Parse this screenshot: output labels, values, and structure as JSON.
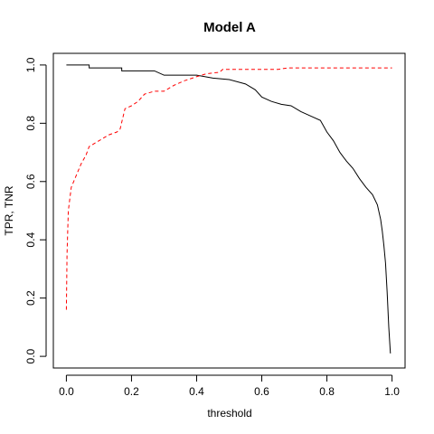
{
  "chart_data": {
    "type": "line",
    "title": "Model A",
    "xlabel": "threshold",
    "ylabel": "TPR, TNR",
    "xlim": [
      -0.04,
      1.04
    ],
    "ylim": [
      -0.04,
      1.04
    ],
    "x_ticks": [
      0.0,
      0.2,
      0.4,
      0.6,
      0.8,
      1.0
    ],
    "x_tick_labels": [
      "0.0",
      "0.2",
      "0.4",
      "0.6",
      "0.8",
      "1.0"
    ],
    "y_ticks": [
      0.0,
      0.2,
      0.4,
      0.6,
      0.8,
      1.0
    ],
    "y_tick_labels": [
      "0.0",
      "0.2",
      "0.4",
      "0.6",
      "0.8",
      "1.0"
    ],
    "grid": false,
    "legend": "none",
    "series": [
      {
        "color": "#000000",
        "dash": "solid",
        "points": [
          [
            0.0,
            1.0
          ],
          [
            0.07,
            1.0
          ],
          [
            0.07,
            0.99
          ],
          [
            0.17,
            0.99
          ],
          [
            0.17,
            0.98
          ],
          [
            0.27,
            0.98
          ],
          [
            0.3,
            0.965
          ],
          [
            0.4,
            0.965
          ],
          [
            0.45,
            0.955
          ],
          [
            0.5,
            0.95
          ],
          [
            0.55,
            0.935
          ],
          [
            0.58,
            0.915
          ],
          [
            0.6,
            0.89
          ],
          [
            0.63,
            0.875
          ],
          [
            0.66,
            0.865
          ],
          [
            0.69,
            0.86
          ],
          [
            0.72,
            0.84
          ],
          [
            0.75,
            0.825
          ],
          [
            0.78,
            0.81
          ],
          [
            0.8,
            0.77
          ],
          [
            0.82,
            0.74
          ],
          [
            0.84,
            0.7
          ],
          [
            0.86,
            0.67
          ],
          [
            0.88,
            0.645
          ],
          [
            0.9,
            0.61
          ],
          [
            0.92,
            0.58
          ],
          [
            0.94,
            0.555
          ],
          [
            0.955,
            0.52
          ],
          [
            0.965,
            0.47
          ],
          [
            0.97,
            0.43
          ],
          [
            0.975,
            0.38
          ],
          [
            0.98,
            0.32
          ],
          [
            0.985,
            0.22
          ],
          [
            0.99,
            0.1
          ],
          [
            0.995,
            0.01
          ]
        ]
      },
      {
        "color": "#ff0000",
        "dash": "dashed",
        "points": [
          [
            0.0,
            0.16
          ],
          [
            0.002,
            0.35
          ],
          [
            0.006,
            0.5
          ],
          [
            0.015,
            0.58
          ],
          [
            0.03,
            0.62
          ],
          [
            0.045,
            0.66
          ],
          [
            0.06,
            0.69
          ],
          [
            0.07,
            0.72
          ],
          [
            0.1,
            0.74
          ],
          [
            0.13,
            0.76
          ],
          [
            0.155,
            0.77
          ],
          [
            0.165,
            0.78
          ],
          [
            0.18,
            0.85
          ],
          [
            0.2,
            0.86
          ],
          [
            0.22,
            0.875
          ],
          [
            0.24,
            0.9
          ],
          [
            0.27,
            0.91
          ],
          [
            0.3,
            0.91
          ],
          [
            0.33,
            0.93
          ],
          [
            0.36,
            0.945
          ],
          [
            0.4,
            0.96
          ],
          [
            0.43,
            0.97
          ],
          [
            0.47,
            0.975
          ],
          [
            0.48,
            0.985
          ],
          [
            0.55,
            0.985
          ],
          [
            0.65,
            0.985
          ],
          [
            0.68,
            0.99
          ],
          [
            0.8,
            0.99
          ],
          [
            1.0,
            0.99
          ]
        ]
      }
    ]
  }
}
